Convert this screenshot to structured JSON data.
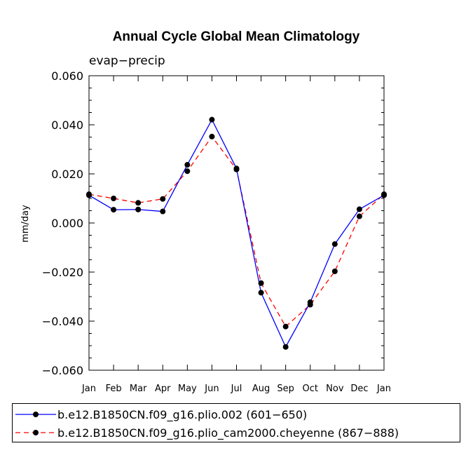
{
  "chart_data": {
    "type": "line",
    "title": "Annual Cycle Global Mean Climatology",
    "subtitle": "evap−precip",
    "xlabel": "",
    "ylabel": "mm/day",
    "ylim": [
      -0.06,
      0.06
    ],
    "yticks": [
      -0.06,
      -0.04,
      -0.02,
      0.0,
      0.02,
      0.04,
      0.06
    ],
    "ytick_labels": [
      "−0.060",
      "−0.040",
      "−0.020",
      "0.000",
      "0.020",
      "0.040",
      "0.060"
    ],
    "categories": [
      "Jan",
      "Feb",
      "Mar",
      "Apr",
      "May",
      "Jun",
      "Jul",
      "Aug",
      "Sep",
      "Oct",
      "Nov",
      "Dec",
      "Jan"
    ],
    "series": [
      {
        "name": "b.e12.B1850CN.f09_g16.plio.002 (601−650)",
        "color": "#0000ff",
        "dash": "solid",
        "values": [
          0.0113,
          0.0054,
          0.0055,
          0.0047,
          0.0237,
          0.0421,
          0.0222,
          -0.0284,
          -0.0505,
          -0.0323,
          -0.0086,
          0.0056,
          0.0113
        ]
      },
      {
        "name": "b.e12.B1850CN.f09_g16.plio_cam2000.cheyenne (867−888)",
        "color": "#ff0000",
        "dash": "dashed",
        "values": [
          0.0117,
          0.01,
          0.0082,
          0.0098,
          0.0211,
          0.0352,
          0.0218,
          -0.0245,
          -0.0422,
          -0.0333,
          -0.0197,
          0.0027,
          0.0117
        ]
      }
    ],
    "legend_position": "bottom"
  }
}
